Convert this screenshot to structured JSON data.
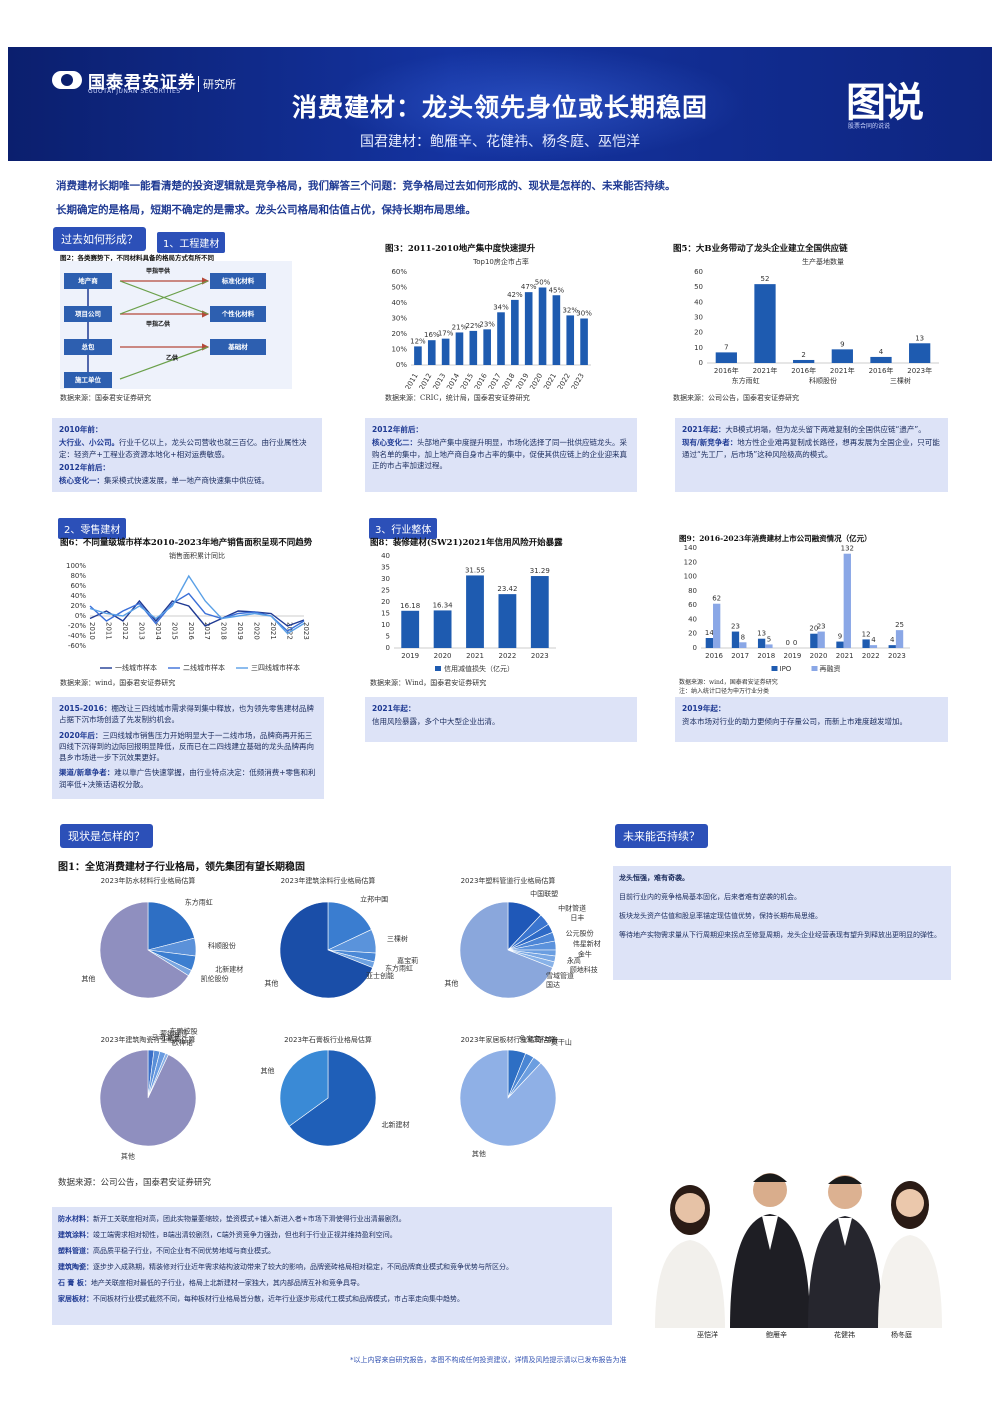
{
  "header": {
    "logo_text": "国泰君安证券",
    "logo_sub": "GUOTAI JUNAN SECURITIES",
    "logo_dept": "研究所",
    "title": "消费建材：龙头领先身位或长期稳固",
    "authors": "国君建材：鲍雁辛、花健祎、杨冬庭、巫恺洋",
    "brand": "图说",
    "brand_sub": "股票合同的说说"
  },
  "intro": {
    "line1": "消费建材长期唯一能看清楚的投资逻辑就是竞争格局，我们解答三个问题：竞争格局过去如何形成的、现状是怎样的、未来能否持续。",
    "line2": "长期确定的是格局，短期不确定的是需求。龙头公司格局和估值占优，保持长期布局思维。"
  },
  "sections": {
    "past": "过去如何形成？",
    "now": "现状是怎样的？",
    "future": "未来能否持续？",
    "sub1": "1、工程建材",
    "sub2": "2、零售建材",
    "sub3": "3、行业整体"
  },
  "fig2": {
    "title": "图2：各类赛势下，不同材料具备的格局方式有所不同",
    "boxes": [
      "地产商",
      "项目公司",
      "总包",
      "施工单位",
      "标准化材料",
      "个性化材料",
      "基础材"
    ],
    "labels": [
      "甲指甲供",
      "甲指乙供",
      "乙供"
    ],
    "source": "数据来源：国泰君安证券研究"
  },
  "fig3": {
    "title": "图3：2011-2010地产集中度快速提升",
    "source": "数据来源：CRIC，统计局，国泰君安证券研究"
  },
  "fig5": {
    "title": "图5：大B业务带动了龙头企业建立全国供应链",
    "source": "数据来源：公司公告，国泰君安证券研究"
  },
  "fig6": {
    "title": "图6：不同量级城市样本2010-2023年地产销售面积呈现不同趋势",
    "source": "数据来源：wind，国泰君安证券研究"
  },
  "fig8": {
    "title": "图8：装修建材(SW21)2021年信用风险开始暴露",
    "source": "数据来源：Wind，国泰君安证券研究"
  },
  "fig9": {
    "title": "图9：2016-2023年消费建材上市公司融资情况（亿元）",
    "source": "数据来源：wind，国泰君安证券研究",
    "note": "注：纳入统计口径为申万行业分类"
  },
  "fig1": {
    "title": "图1：全览消费建材子行业格局，领先集团有望长期稳固",
    "source": "数据来源：公司公告，国泰君安证券研究"
  },
  "notes": {
    "box1": {
      "h1": "2010年前：",
      "l1a": "大行业、小公司。",
      "l1b": "行业千亿以上，龙头公司营收也就三百亿。由行业属性决定：轻资产+工程业态资源本地化+相对运费敏感。",
      "h2": "2012年前后：",
      "l2a": "核心变化一：",
      "l2b": "集采模式快速发展，单一地产商快速集中供应链。"
    },
    "box2": {
      "h1": "2012年前后：",
      "l1a": "核心变化二：",
      "l1b": "头部地产集中度提升明显，市场化选择了同一批供应链龙头。采购名单的集中，加上地产商自身市占率的集中，促使其供应链上的企业迎来真正的市占率加速过程。"
    },
    "box3": {
      "h1": "2021年起：",
      "l1b": "大B模式坍塌，但为龙头留下两难复制的全国供应链“遗产”。",
      "h2": "现有/新竞争者：",
      "l2b": "地方性企业难再复制成长路径，想再发展为全国企业，只可能通过“先工厂，后市场”这种风险极高的模式。"
    },
    "box4": {
      "h1": "2015-2016：",
      "l1b": "棚改让三四线城市需求得到集中释放，也为领先零售建材品牌占据下沉市场创造了先发制约机会。",
      "h2": "2020年后：",
      "l2b": "三四线城市销售压力开始明显大于一二线市场，品牌商再开拓三四线下沉得到的边际回报明显降低，反而已在二四线建立基础的龙头品牌再向县乡市场进一步下沉效果更好。",
      "h3": "渠道/新章争者：",
      "l3b": "难以靠广告快速掌握，由行业特点决定：低频消费+零售和利润率低+决策话语权分散。"
    },
    "box5": {
      "h1": "2021年起：",
      "l1b": "信用风险暴露，多个中大型企业出清。"
    },
    "box6": {
      "h1": "2019年起：",
      "l1b": "资本市场对行业的助力更倾向于存量公司，而新上市难度越发增加。"
    }
  },
  "future": {
    "l1": "龙头恒强，难有奇袭。",
    "l2": "目前行业内的竞争格局基本固化，后来者难有逆袭的机会。",
    "l3": "板块龙头资产估值和股息率锚定现估值优势，保持长期布局思维。",
    "l4": "等待地产实物需求量从下行周期迎来拐点至修复周期，龙头企业经营表现有望升到释放出更明显的弹性。"
  },
  "list": [
    {
      "k": "防水材料：",
      "v": "新开工关联度相对高，团此实物量萎缩较，垫资模式+铺入新进入者+市场下滑使得行业出清最剧烈。"
    },
    {
      "k": "建筑涂料：",
      "v": "竣工端需求相对韧性，B端出清较剧烈，C端外资竞争力强劲，但也利于行业正视并维持盈利空间。"
    },
    {
      "k": "塑料管道：",
      "v": "高品质平稳子行业，不同企业有不同优势地域与商业模式。"
    },
    {
      "k": "建筑陶瓷：",
      "v": "逐步步入成熟期，精装修对行业近年需求结构波动带来了较大的影响，品牌瓷砖格局相对稳定，不同品牌商业模式和竞争优势与所区分。"
    },
    {
      "k": "石 膏 板：",
      "v": "地产关联度相对最低的子行业，格局上北新建材一家独大，其内部品牌互补和竞争具导。"
    },
    {
      "k": "家居板材：",
      "v": "不同板材行业模式截然不同，每种板材行业格局皆分散，近年行业逐步形成代工模式和品牌模式，市占率走向集中趋势。"
    }
  ],
  "persons": [
    "巫恺洋",
    "鲍雁辛",
    "花健祎",
    "杨冬庭"
  ],
  "footer": "*以上内容来自研究报告，本图不构成任何投资建议，详情及风险提示请以已发布报告为准",
  "chart_data": [
    {
      "id": "fig3",
      "type": "bar",
      "title": "Top10房企市占率",
      "categories": [
        "2011",
        "2012",
        "2013",
        "2014",
        "2015",
        "2016",
        "2017",
        "2018",
        "2019",
        "2020",
        "2021",
        "2022",
        "2023"
      ],
      "values": [
        12,
        16,
        17,
        21,
        22,
        23,
        34,
        42,
        47,
        50,
        45,
        32,
        30
      ],
      "data_labels": [
        "12%",
        "16%",
        "17%",
        "21%",
        "22%",
        "23%",
        "34%",
        "42%",
        "47%",
        "50%",
        "45%",
        "32%",
        "30%"
      ],
      "yticks": [
        "0%",
        "10%",
        "20%",
        "30%",
        "40%",
        "50%",
        "60%"
      ],
      "ylim": [
        0,
        60
      ],
      "color": "#1e5bb0"
    },
    {
      "id": "fig5",
      "type": "bar",
      "title": "生产基地数量",
      "categories": [
        "2016年",
        "2021年",
        "2016年",
        "2021年",
        "2016年",
        "2023年"
      ],
      "group_labels": [
        "东方雨虹",
        "科顺股份",
        "三棵树"
      ],
      "values": [
        7,
        52,
        2,
        9,
        4,
        13
      ],
      "yticks": [
        "0",
        "10",
        "20",
        "30",
        "40",
        "50",
        "60"
      ],
      "ylim": [
        0,
        60
      ],
      "color": "#1e5bb0"
    },
    {
      "id": "fig6",
      "type": "line",
      "title": "销售面积累计同比",
      "x": [
        "2010",
        "2011",
        "2012",
        "2013",
        "2014",
        "2015",
        "2016",
        "2017",
        "2018",
        "2019",
        "2020",
        "2021",
        "2022",
        "2023"
      ],
      "series": [
        {
          "name": "一线城市样本",
          "values": [
            -5,
            10,
            -10,
            30,
            -10,
            30,
            20,
            -20,
            -5,
            10,
            8,
            5,
            -20,
            -8
          ],
          "color": "#1f3a93"
        },
        {
          "name": "二线城市样本",
          "values": [
            20,
            -10,
            10,
            25,
            -15,
            25,
            45,
            5,
            -5,
            5,
            8,
            0,
            -30,
            -10
          ],
          "color": "#3a6fd8"
        },
        {
          "name": "三四线城市样本",
          "values": [
            15,
            5,
            0,
            20,
            -5,
            20,
            80,
            30,
            -5,
            0,
            5,
            0,
            -35,
            -15
          ],
          "color": "#5aa0e6"
        }
      ],
      "yticks": [
        "100%",
        "80%",
        "60%",
        "40%",
        "20%",
        "0%",
        "-20%",
        "-40%",
        "-60%"
      ],
      "ylim": [
        -60,
        100
      ]
    },
    {
      "id": "fig8",
      "type": "bar",
      "categories": [
        "2019",
        "2020",
        "2021",
        "2022",
        "2023"
      ],
      "series": [
        {
          "name": "信用减值损失（亿元）",
          "values": [
            16.18,
            16.34,
            31.55,
            23.42,
            31.29
          ]
        }
      ],
      "yticks": [
        "0",
        "5",
        "10",
        "15",
        "20",
        "25",
        "30",
        "35",
        "40"
      ],
      "ylim": [
        0,
        40
      ],
      "color": "#1e5bb0"
    },
    {
      "id": "fig9",
      "type": "bar",
      "categories": [
        "2016",
        "2017",
        "2018",
        "2019",
        "2020",
        "2021",
        "2022",
        "2023"
      ],
      "series": [
        {
          "name": "IPO",
          "values": [
            14,
            23,
            13,
            0,
            20,
            9,
            12,
            4
          ],
          "labels": [
            "14",
            "23",
            "13",
            "0",
            "20",
            "9",
            "12",
            "4"
          ],
          "color": "#1e5bb0"
        },
        {
          "name": "再融资",
          "values": [
            62,
            8,
            5,
            0,
            23,
            132,
            4,
            25
          ],
          "labels": [
            "62",
            "8",
            "5",
            "0",
            "23",
            "132",
            "4",
            "25"
          ],
          "color": "#8aa7e6"
        }
      ],
      "yticks": [
        "0",
        "20",
        "40",
        "60",
        "80",
        "100",
        "120",
        "140"
      ],
      "ylim": [
        0,
        140
      ]
    },
    {
      "id": "pie1",
      "type": "pie",
      "title": "2023年防水材料行业格局估算",
      "slices": [
        {
          "label": "东方雨虹",
          "value": 21,
          "color": "#2e6fc4"
        },
        {
          "label": "科顺股份",
          "value": 6,
          "color": "#5b91d9"
        },
        {
          "label": "北新建材",
          "value": 5,
          "color": "#3c7ed0"
        },
        {
          "label": "凯伦股份",
          "value": 2,
          "color": "#7aa6e0"
        },
        {
          "label": "其他",
          "value": 66,
          "color": "#8f8fbf"
        }
      ]
    },
    {
      "id": "pie2",
      "type": "pie",
      "title": "2023年建筑涂料行业格局估算",
      "slices": [
        {
          "label": "立邦中国",
          "value": 18,
          "color": "#3a7dd0"
        },
        {
          "label": "三棵树",
          "value": 8,
          "color": "#5a93db"
        },
        {
          "label": "嘉宝莉",
          "value": 3,
          "color": "#4a88d6"
        },
        {
          "label": "东方雨虹",
          "value": 2,
          "color": "#6ea2e2"
        },
        {
          "label": "其他",
          "value": 69,
          "color": "#1a4ea8"
        }
      ],
      "annotations": [
        "亚士创能"
      ]
    },
    {
      "id": "pie3",
      "type": "pie",
      "title": "2023年塑料管道行业格局估算",
      "slices": [
        {
          "label": "中国联塑",
          "value": 12,
          "color": "#1f58b8"
        },
        {
          "label": "中财管道",
          "value": 4,
          "color": "#3a75cf"
        },
        {
          "label": "日丰",
          "value": 3,
          "color": "#2e6ac6"
        },
        {
          "label": "公元股份",
          "value": 3,
          "color": "#4d86d6"
        },
        {
          "label": "伟星新材",
          "value": 3,
          "color": "#5b92dc"
        },
        {
          "label": "金牛",
          "value": 2,
          "color": "#6a9ee1"
        },
        {
          "label": "永高",
          "value": 2,
          "color": "#7aa8e4"
        },
        {
          "label": "顾地科技",
          "value": 2,
          "color": "#88b2e8"
        },
        {
          "label": "其他",
          "value": 69,
          "color": "#8aa7dc"
        }
      ],
      "annotations": [
        "雪域管道",
        "国达"
      ]
    },
    {
      "id": "pie4",
      "type": "pie",
      "title": "2023年建筑陶瓷行业格局估算",
      "slices": [
        {
          "label": "马可波罗",
          "value": 2,
          "color": "#3a6fc8"
        },
        {
          "label": "蒙娜丽莎",
          "value": 2,
          "color": "#5a8fd8"
        },
        {
          "label": "东鹏控股",
          "value": 2,
          "color": "#6a9be0"
        },
        {
          "label": "欧神诺",
          "value": 1,
          "color": "#8ab0e6"
        },
        {
          "label": "其他",
          "value": 93,
          "color": "#8f8fbf"
        }
      ]
    },
    {
      "id": "pie5",
      "type": "pie",
      "title": "2023年石膏板行业格局估算",
      "slices": [
        {
          "label": "北新建材",
          "value": 65,
          "color": "#1f5fb8"
        },
        {
          "label": "其他",
          "value": 35,
          "color": "#3a8ad6"
        }
      ]
    },
    {
      "id": "pie6",
      "type": "pie",
      "title": "2023年家居板材行业格局估算",
      "slices": [
        {
          "label": "兔宝宝",
          "value": 6,
          "color": "#2e6fc4"
        },
        {
          "label": "千年舟",
          "value": 3,
          "color": "#4a86d4"
        },
        {
          "label": "莫干山",
          "value": 3,
          "color": "#6b9ee0"
        },
        {
          "label": "其他",
          "value": 88,
          "color": "#8fb0e6"
        }
      ]
    }
  ]
}
